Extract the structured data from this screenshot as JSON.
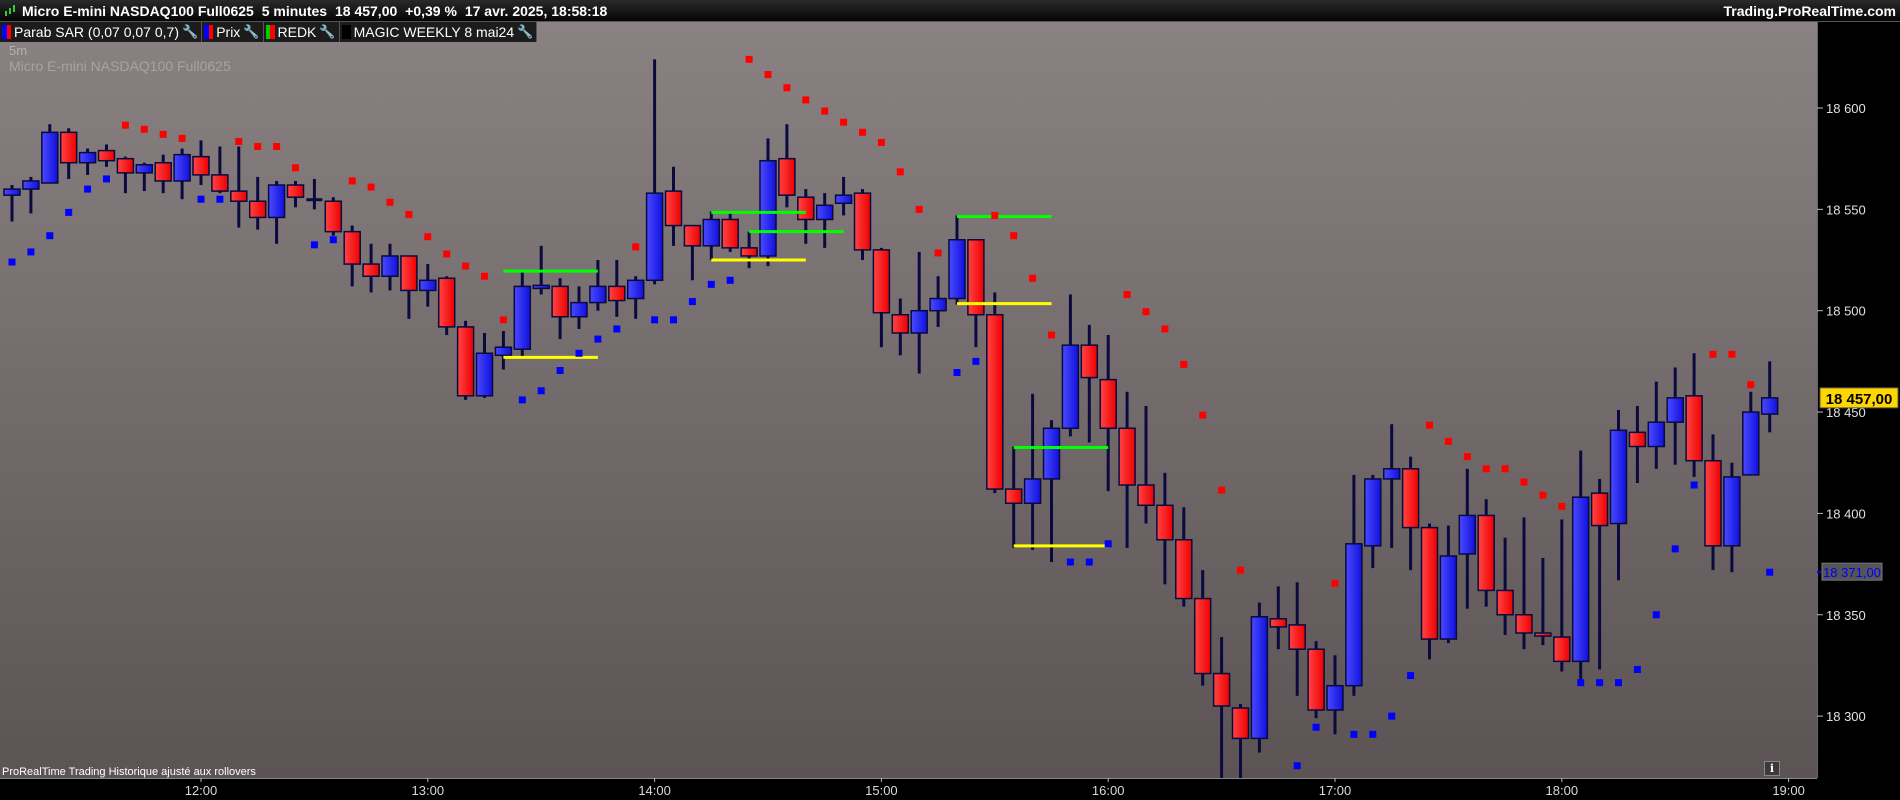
{
  "header": {
    "instrument": "Micro E-mini NASDAQ100 Full0625",
    "timeframe": "5 minutes",
    "last_price": "18 457,00",
    "change": "+0,39 %",
    "datetime": "17 avr. 2025, 18:58:18",
    "site": "Trading.ProRealTime.com"
  },
  "legend": [
    {
      "label": "Parab SAR (0,07 0,07 0,7)",
      "colors": [
        "#0000ff",
        "#ff0000"
      ],
      "icon": "wrench-icon"
    },
    {
      "label": "Prix",
      "colors": [
        "#0000ff",
        "#ff0000"
      ],
      "icon": "wrench-icon"
    },
    {
      "label": "REDK",
      "colors": [
        "#00cc00",
        "#ff0000"
      ],
      "icon": "wrench-icon"
    },
    {
      "label": "MAGIC WEEKLY 8 mai24",
      "colors": [
        "#000000",
        "#000000"
      ],
      "icon": "wrench-icon"
    }
  ],
  "chart_overlay": {
    "period": "5m",
    "instrument": "Micro E-mini NASDAQ100 Full0625",
    "footer": "ProRealTime Trading  Historique ajusté aux rollovers"
  },
  "colors": {
    "up": "#2a2aff",
    "down": "#ff1a1a",
    "wick": "#0a0a40",
    "sar_up": "#0000ff",
    "sar_down": "#ff0000",
    "level_high": "#00ff00",
    "level_low": "#ffff00",
    "price_label_bg": "#ffd700",
    "sar_label_text": "#0000ff"
  },
  "chart_data": {
    "type": "candlestick",
    "y_ticks": [
      "18 300",
      "18 350",
      "18 400",
      "18 450",
      "18 500",
      "18 550",
      "18 600"
    ],
    "y_tick_values": [
      18300,
      18350,
      18400,
      18450,
      18500,
      18550,
      18600
    ],
    "x_ticks": [
      "12:00",
      "13:00",
      "14:00",
      "15:00",
      "16:00",
      "17:00",
      "18:00",
      "19:00"
    ],
    "ylim": [
      18269,
      18640
    ],
    "xlim": [
      "11:05",
      "19:05"
    ],
    "price_label": {
      "value": 18457,
      "text": "18 457,00"
    },
    "sar_label": {
      "value": 18371,
      "text": "18 371,00"
    },
    "candles_columns": [
      "time",
      "open",
      "high",
      "low",
      "close"
    ],
    "candles": [
      [
        "11:10",
        18557,
        18562,
        18544,
        18560
      ],
      [
        "11:15",
        18560,
        18566,
        18548,
        18564
      ],
      [
        "11:20",
        18563,
        18592,
        18563,
        18588
      ],
      [
        "11:25",
        18588,
        18590,
        18565,
        18573
      ],
      [
        "11:30",
        18573,
        18580,
        18567,
        18578
      ],
      [
        "11:35",
        18579,
        18582,
        18571,
        18574
      ],
      [
        "11:40",
        18575,
        18576,
        18558,
        18568
      ],
      [
        "11:45",
        18568,
        18573,
        18559,
        18572
      ],
      [
        "11:50",
        18573,
        18577,
        18558,
        18564
      ],
      [
        "11:55",
        18564,
        18580,
        18555,
        18577
      ],
      [
        "12:00",
        18576,
        18584,
        18562,
        18567
      ],
      [
        "12:05",
        18567,
        18581,
        18558,
        18559
      ],
      [
        "12:10",
        18559,
        18581,
        18541,
        18554
      ],
      [
        "12:15",
        18554,
        18566,
        18540,
        18546
      ],
      [
        "12:20",
        18546,
        18564,
        18533,
        18562
      ],
      [
        "12:25",
        18562,
        18564,
        18551,
        18556
      ],
      [
        "12:30",
        18555,
        18565,
        18550,
        18555
      ],
      [
        "12:35",
        18554,
        18556,
        18537,
        18539
      ],
      [
        "12:40",
        18539,
        18542,
        18512,
        18523
      ],
      [
        "12:45",
        18523,
        18533,
        18509,
        18517
      ],
      [
        "12:50",
        18517,
        18533,
        18510,
        18527
      ],
      [
        "12:55",
        18527,
        18527,
        18496,
        18510
      ],
      [
        "13:00",
        18510,
        18523,
        18502,
        18515
      ],
      [
        "13:05",
        18516,
        18517,
        18488,
        18492
      ],
      [
        "13:10",
        18492,
        18495,
        18456,
        18458
      ],
      [
        "13:15",
        18458,
        18489,
        18457,
        18479
      ],
      [
        "13:20",
        18478,
        18490,
        18471,
        18482
      ],
      [
        "13:25",
        18481,
        18519,
        18477,
        18512
      ],
      [
        "13:30",
        18511,
        18532,
        18508,
        18512.5
      ],
      [
        "13:35",
        18512,
        18516,
        18486,
        18497
      ],
      [
        "13:40",
        18497,
        18512,
        18491,
        18504
      ],
      [
        "13:45",
        18504,
        18525,
        18500,
        18512
      ],
      [
        "13:50",
        18512,
        18525,
        18497,
        18505
      ],
      [
        "13:55",
        18506,
        18517,
        18496,
        18515
      ],
      [
        "14:00",
        18515,
        18624,
        18513,
        18558
      ],
      [
        "14:05",
        18559,
        18571,
        18532,
        18542
      ],
      [
        "14:10",
        18542,
        18542,
        18515,
        18532
      ],
      [
        "14:15",
        18532,
        18549,
        18525,
        18545
      ],
      [
        "14:20",
        18545,
        18548,
        18529,
        18531
      ],
      [
        "14:25",
        18531,
        18539,
        18521,
        18527
      ],
      [
        "14:30",
        18527,
        18585,
        18522,
        18574
      ],
      [
        "14:35",
        18575,
        18592,
        18551,
        18557
      ],
      [
        "14:40",
        18556,
        18560,
        18533,
        18545
      ],
      [
        "14:45",
        18545,
        18558,
        18531,
        18552
      ],
      [
        "14:50",
        18553,
        18566,
        18547,
        18557
      ],
      [
        "14:55",
        18558,
        18560,
        18525,
        18530
      ],
      [
        "15:00",
        18530,
        18531,
        18482,
        18499
      ],
      [
        "15:05",
        18498,
        18506,
        18478,
        18489
      ],
      [
        "15:10",
        18489,
        18529,
        18469,
        18500
      ],
      [
        "15:15",
        18500,
        18517,
        18492,
        18506
      ],
      [
        "15:20",
        18506,
        18547,
        18503,
        18535
      ],
      [
        "15:25",
        18535,
        18535,
        18482,
        18498
      ],
      [
        "15:30",
        18498,
        18509,
        18410,
        18412
      ],
      [
        "15:35",
        18412,
        18433,
        18383,
        18405
      ],
      [
        "15:40",
        18405,
        18459,
        18382,
        18417
      ],
      [
        "15:45",
        18417,
        18446,
        18376,
        18442
      ],
      [
        "15:50",
        18442,
        18508,
        18438,
        18483
      ],
      [
        "15:55",
        18483,
        18493,
        18435,
        18467
      ],
      [
        "16:00",
        18466,
        18488,
        18411,
        18442
      ],
      [
        "16:05",
        18442,
        18460,
        18383,
        18414
      ],
      [
        "16:10",
        18414,
        18453,
        18395,
        18404
      ],
      [
        "16:15",
        18404,
        18420,
        18365,
        18387
      ],
      [
        "16:20",
        18387,
        18403,
        18354,
        18358
      ],
      [
        "16:25",
        18358,
        18372,
        18315,
        18321
      ],
      [
        "16:30",
        18321,
        18339,
        18265,
        18305
      ],
      [
        "16:35",
        18304,
        18306,
        18265,
        18289
      ],
      [
        "16:40",
        18289,
        18356,
        18282,
        18349
      ],
      [
        "16:45",
        18348,
        18364,
        18333,
        18344
      ],
      [
        "16:50",
        18345,
        18366,
        18310,
        18333
      ],
      [
        "16:55",
        18333,
        18337,
        18299,
        18303
      ],
      [
        "17:00",
        18303,
        18330,
        18291,
        18315
      ],
      [
        "17:05",
        18315,
        18419,
        18310,
        18385
      ],
      [
        "17:10",
        18384,
        18419,
        18373,
        18417
      ],
      [
        "17:15",
        18417,
        18444,
        18383,
        18422
      ],
      [
        "17:20",
        18422,
        18428,
        18372,
        18393
      ],
      [
        "17:25",
        18393,
        18395,
        18328,
        18338
      ],
      [
        "17:30",
        18338,
        18394,
        18336,
        18379
      ],
      [
        "17:35",
        18380,
        18422,
        18353,
        18399
      ],
      [
        "17:40",
        18399,
        18407,
        18354,
        18362
      ],
      [
        "17:45",
        18362,
        18388,
        18340,
        18350
      ],
      [
        "17:50",
        18350,
        18398,
        18333,
        18341
      ],
      [
        "17:55",
        18341,
        18378,
        18335,
        18339.5
      ],
      [
        "18:00",
        18339,
        18397,
        18322,
        18327
      ],
      [
        "18:05",
        18327,
        18431,
        18317,
        18408
      ],
      [
        "18:10",
        18410,
        18417,
        18323,
        18394
      ],
      [
        "18:15",
        18395,
        18451,
        18367,
        18441
      ],
      [
        "18:20",
        18440,
        18453,
        18415,
        18433
      ],
      [
        "18:25",
        18433,
        18465,
        18422,
        18445
      ],
      [
        "18:30",
        18445,
        18472,
        18424,
        18457
      ],
      [
        "18:35",
        18458,
        18479,
        18418,
        18426
      ],
      [
        "18:40",
        18426,
        18439,
        18372,
        18384
      ],
      [
        "18:45",
        18384,
        18425,
        18371,
        18418
      ],
      [
        "18:50",
        18419,
        18460,
        18419,
        18450
      ],
      [
        "18:55",
        18449,
        18475,
        18440,
        18457
      ]
    ],
    "sar_columns": [
      "time",
      "value",
      "trend"
    ],
    "sar": [
      [
        "11:10",
        18524,
        "up"
      ],
      [
        "11:15",
        18529,
        "up"
      ],
      [
        "11:20",
        18537,
        "up"
      ],
      [
        "11:25",
        18548.5,
        "up"
      ],
      [
        "11:30",
        18560,
        "up"
      ],
      [
        "11:35",
        18565,
        "up"
      ],
      [
        "11:40",
        18591.5,
        "down"
      ],
      [
        "11:45",
        18589.5,
        "down"
      ],
      [
        "11:50",
        18587,
        "down"
      ],
      [
        "11:55",
        18585,
        "down"
      ],
      [
        "12:00",
        18555,
        "up"
      ],
      [
        "12:05",
        18555,
        "up"
      ],
      [
        "12:10",
        18583.5,
        "down"
      ],
      [
        "12:15",
        18581,
        "down"
      ],
      [
        "12:20",
        18581,
        "down"
      ],
      [
        "12:25",
        18570.5,
        "down"
      ],
      [
        "12:30",
        18532.5,
        "up"
      ],
      [
        "12:35",
        18535,
        "up"
      ],
      [
        "12:40",
        18564,
        "down"
      ],
      [
        "12:45",
        18561,
        "down"
      ],
      [
        "12:50",
        18553.5,
        "down"
      ],
      [
        "12:55",
        18547.5,
        "down"
      ],
      [
        "13:00",
        18536.5,
        "down"
      ],
      [
        "13:05",
        18528,
        "down"
      ],
      [
        "13:10",
        18522,
        "down"
      ],
      [
        "13:15",
        18517,
        "down"
      ],
      [
        "13:20",
        18495.5,
        "down"
      ],
      [
        "13:25",
        18456,
        "up"
      ],
      [
        "13:30",
        18460.5,
        "up"
      ],
      [
        "13:35",
        18470.5,
        "up"
      ],
      [
        "13:40",
        18479,
        "up"
      ],
      [
        "13:45",
        18486,
        "up"
      ],
      [
        "13:50",
        18491,
        "up"
      ],
      [
        "13:55",
        18531.5,
        "down"
      ],
      [
        "14:00",
        18495.5,
        "up"
      ],
      [
        "14:05",
        18495.5,
        "up"
      ],
      [
        "14:10",
        18504.5,
        "up"
      ],
      [
        "14:15",
        18513,
        "up"
      ],
      [
        "14:20",
        18515,
        "up"
      ],
      [
        "14:25",
        18624,
        "down"
      ],
      [
        "14:30",
        18616.5,
        "down"
      ],
      [
        "14:35",
        18610,
        "down"
      ],
      [
        "14:40",
        18604,
        "down"
      ],
      [
        "14:45",
        18598.5,
        "down"
      ],
      [
        "14:50",
        18593,
        "down"
      ],
      [
        "14:55",
        18588,
        "down"
      ],
      [
        "15:00",
        18583,
        "down"
      ],
      [
        "15:05",
        18568.5,
        "down"
      ],
      [
        "15:10",
        18550,
        "down"
      ],
      [
        "15:15",
        18528.5,
        "down"
      ],
      [
        "15:20",
        18469.5,
        "up"
      ],
      [
        "15:25",
        18475,
        "up"
      ],
      [
        "15:30",
        18547,
        "down"
      ],
      [
        "15:35",
        18537,
        "down"
      ],
      [
        "15:40",
        18516,
        "down"
      ],
      [
        "15:45",
        18488,
        "down"
      ],
      [
        "15:50",
        18376,
        "up"
      ],
      [
        "15:55",
        18376,
        "up"
      ],
      [
        "16:00",
        18385,
        "up"
      ],
      [
        "16:05",
        18508,
        "down"
      ],
      [
        "16:10",
        18499.5,
        "down"
      ],
      [
        "16:15",
        18491,
        "down"
      ],
      [
        "16:20",
        18473.5,
        "down"
      ],
      [
        "16:25",
        18448.5,
        "down"
      ],
      [
        "16:30",
        18411.5,
        "down"
      ],
      [
        "16:35",
        18372,
        "down"
      ],
      [
        "16:50",
        18275.5,
        "up"
      ],
      [
        "16:55",
        18294.5,
        "up"
      ],
      [
        "17:00",
        18365.5,
        "down"
      ],
      [
        "17:05",
        18291,
        "up"
      ],
      [
        "17:10",
        18291,
        "up"
      ],
      [
        "17:15",
        18300,
        "up"
      ],
      [
        "17:20",
        18320,
        "up"
      ],
      [
        "17:25",
        18443.5,
        "down"
      ],
      [
        "17:30",
        18435.5,
        "down"
      ],
      [
        "17:35",
        18428,
        "down"
      ],
      [
        "17:40",
        18422,
        "down"
      ],
      [
        "17:45",
        18422,
        "down"
      ],
      [
        "17:50",
        18415.5,
        "down"
      ],
      [
        "17:55",
        18409,
        "down"
      ],
      [
        "18:00",
        18403.5,
        "down"
      ],
      [
        "18:05",
        18316.5,
        "up"
      ],
      [
        "18:10",
        18316.5,
        "up"
      ],
      [
        "18:15",
        18316.5,
        "up"
      ],
      [
        "18:20",
        18323,
        "up"
      ],
      [
        "18:25",
        18350,
        "up"
      ],
      [
        "18:30",
        18382.5,
        "up"
      ],
      [
        "18:35",
        18414,
        "up"
      ],
      [
        "18:40",
        18478.5,
        "down"
      ],
      [
        "18:45",
        18478.5,
        "down"
      ],
      [
        "18:50",
        18463.5,
        "down"
      ],
      [
        "18:55",
        18371,
        "up"
      ]
    ],
    "levels": [
      {
        "from": "13:20",
        "to": "13:45",
        "value": 18519.5,
        "kind": "high"
      },
      {
        "from": "13:20",
        "to": "13:45",
        "value": 18477,
        "kind": "low"
      },
      {
        "from": "14:15",
        "to": "14:40",
        "value": 18548.5,
        "kind": "high"
      },
      {
        "from": "14:25",
        "to": "14:50",
        "value": 18539,
        "kind": "high"
      },
      {
        "from": "14:15",
        "to": "14:40",
        "value": 18525,
        "kind": "low"
      },
      {
        "from": "15:20",
        "to": "15:45",
        "value": 18546.5,
        "kind": "high"
      },
      {
        "from": "15:20",
        "to": "15:45",
        "value": 18503.5,
        "kind": "low"
      },
      {
        "from": "15:35",
        "to": "16:00",
        "value": 18432.5,
        "kind": "high"
      },
      {
        "from": "15:35",
        "to": "16:00",
        "value": 18384,
        "kind": "low"
      }
    ]
  }
}
